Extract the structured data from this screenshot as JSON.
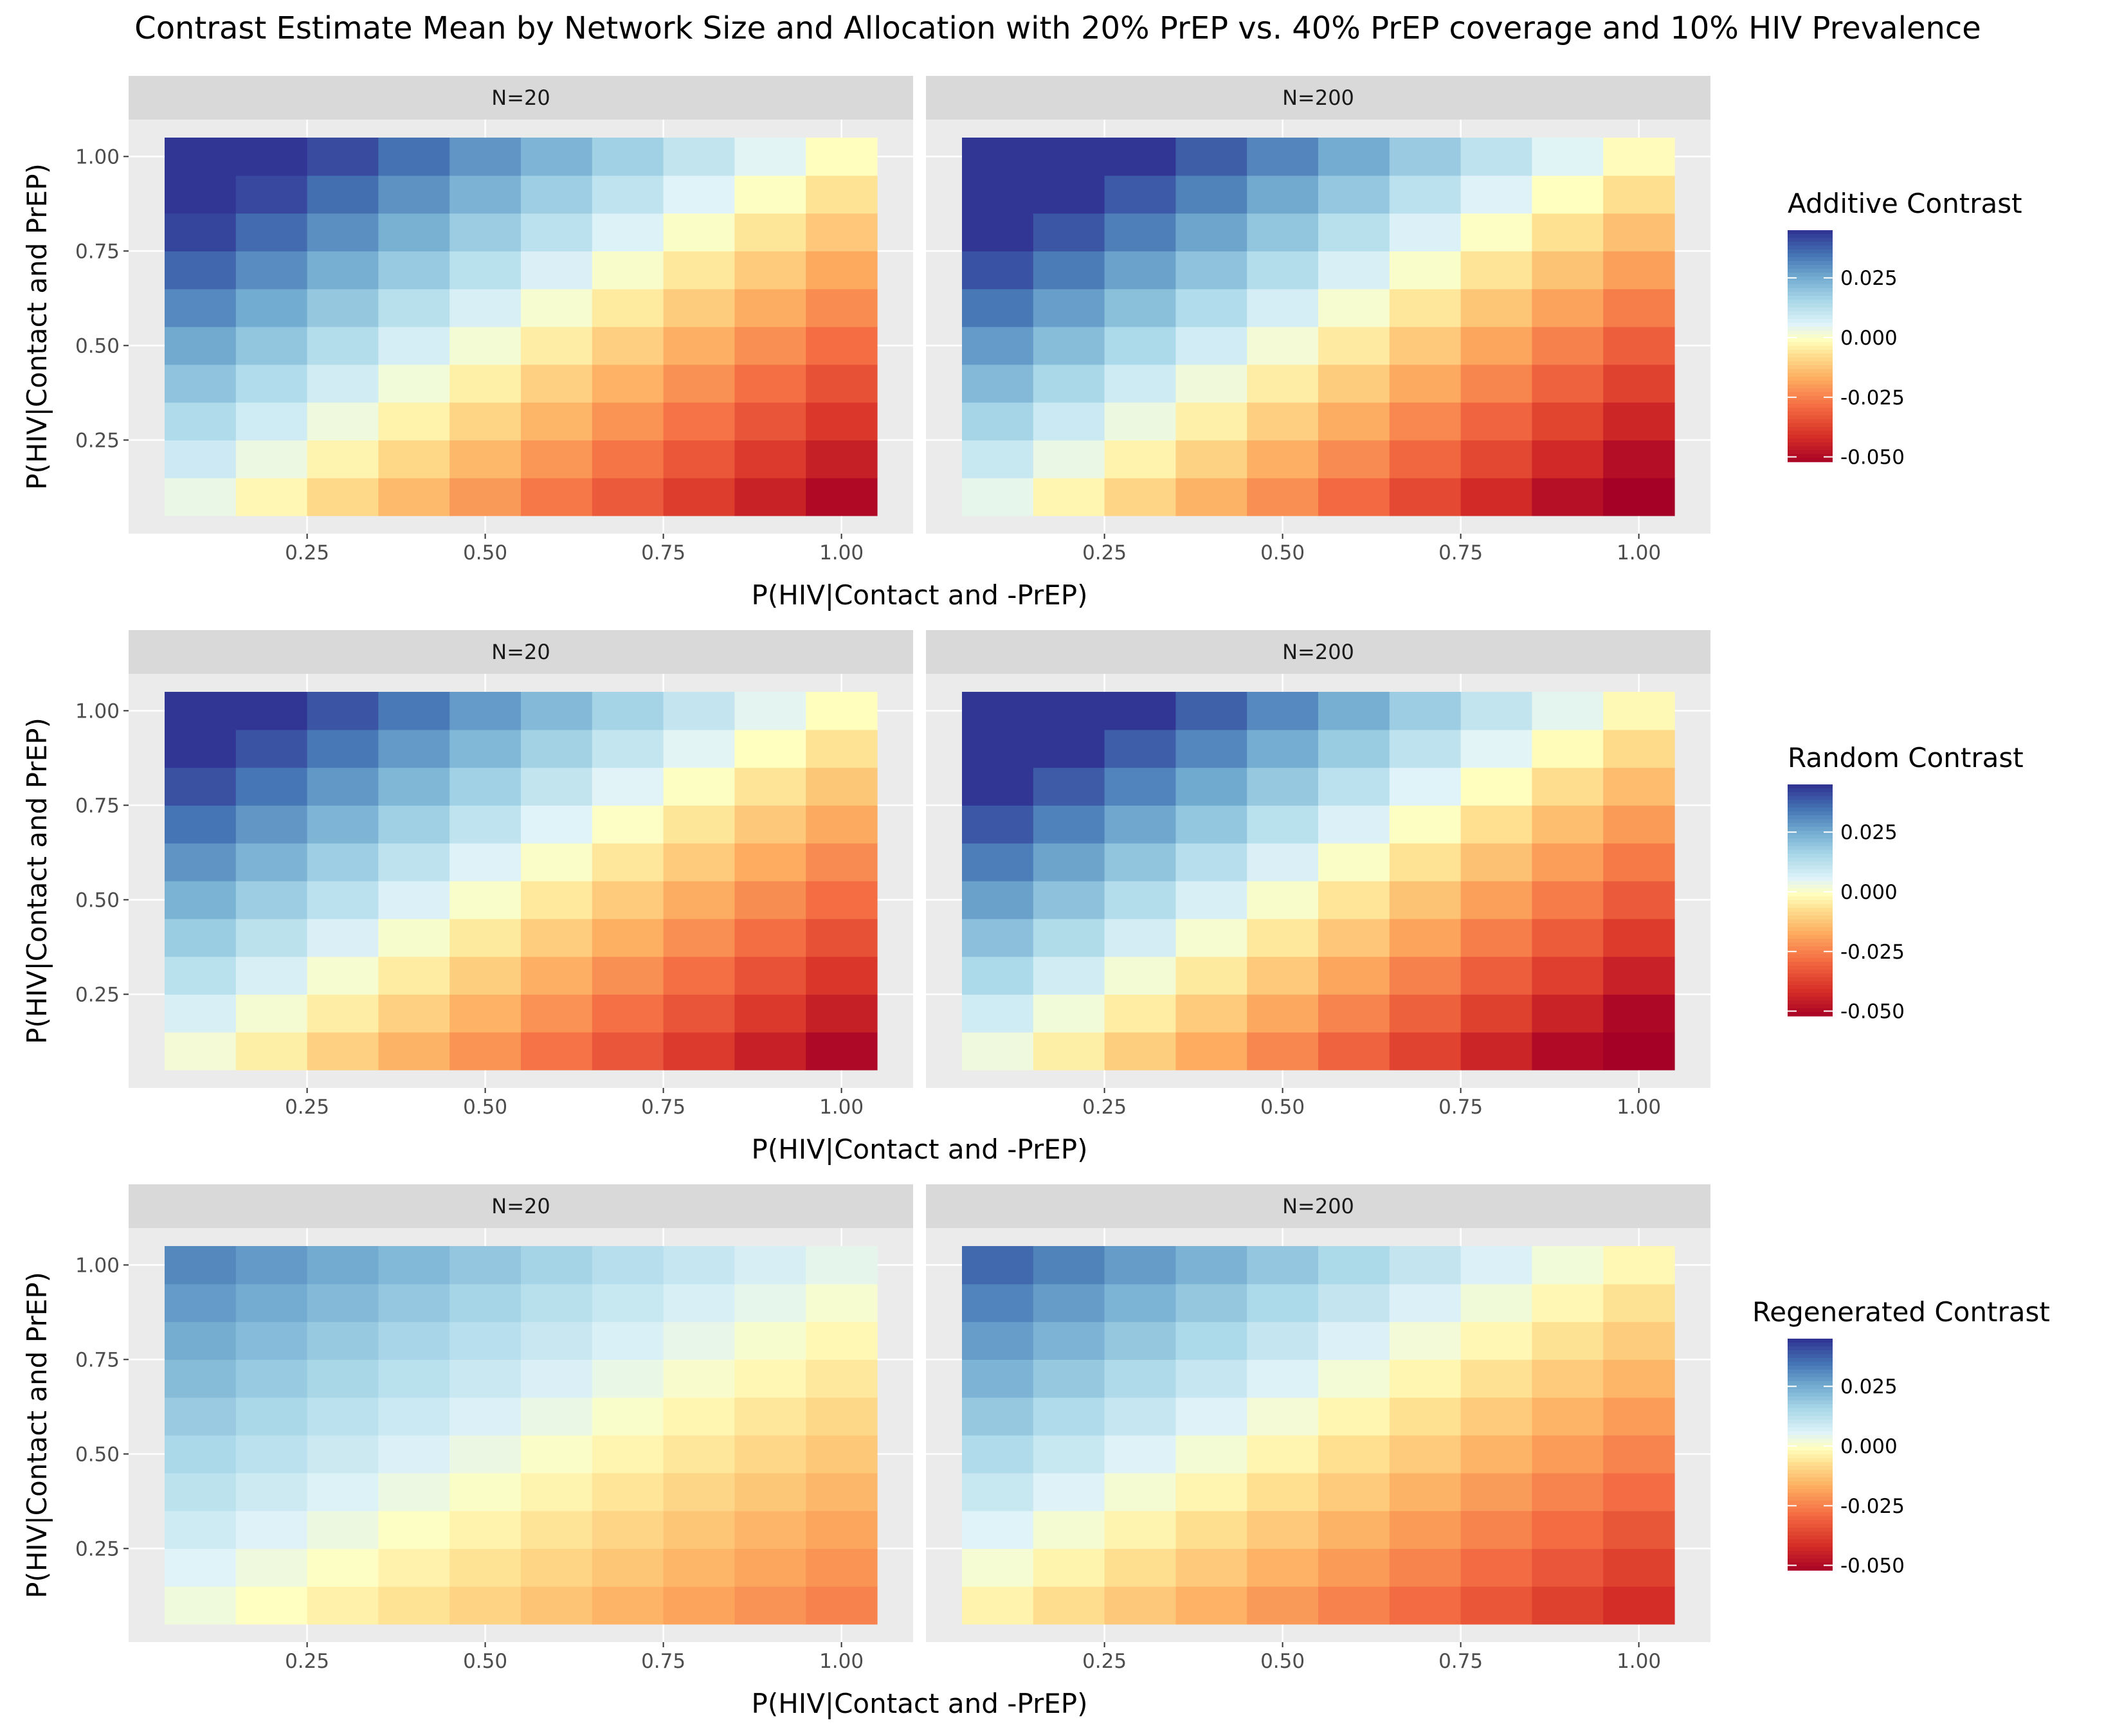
{
  "title": "Contrast Estimate Mean by Network Size and Allocation with 20% PrEP vs. 40% PrEP coverage and 10% HIV Prevalence",
  "x_label": "P(HIV|Contact and -PrEP)",
  "y_label": "P(HIV|Contact and PrEP)",
  "chart_data": [
    {
      "type": "heatmap",
      "row_label": "Additive Contrast",
      "x": [
        0.1,
        0.2,
        0.3,
        0.4,
        0.5,
        0.6,
        0.7,
        0.8,
        0.9,
        1.0
      ],
      "y": [
        0.1,
        0.2,
        0.3,
        0.4,
        0.5,
        0.6,
        0.7,
        0.8,
        0.9,
        1.0
      ],
      "x_ticks": [
        "0.25",
        "0.50",
        "0.75",
        "1.00"
      ],
      "y_ticks": [
        "0.25",
        "0.50",
        "0.75",
        "1.00"
      ],
      "legend": {
        "title": "Additive Contrast",
        "ticks": [
          "0.025",
          "0.000",
          "-0.025",
          "-0.050"
        ],
        "range": [
          -0.052,
          0.045
        ]
      },
      "panels": [
        {
          "label": "N=20",
          "center": 0.002,
          "fx": 0.06,
          "fy": 0.055
        },
        {
          "label": "N=200",
          "center": 0.002,
          "fx": 0.066,
          "fy": 0.06
        }
      ]
    },
    {
      "type": "heatmap",
      "row_label": "Random Contrast",
      "x": [
        0.1,
        0.2,
        0.3,
        0.4,
        0.5,
        0.6,
        0.7,
        0.8,
        0.9,
        1.0
      ],
      "y": [
        0.1,
        0.2,
        0.3,
        0.4,
        0.5,
        0.6,
        0.7,
        0.8,
        0.9,
        1.0
      ],
      "x_ticks": [
        "0.25",
        "0.50",
        "0.75",
        "1.00"
      ],
      "y_ticks": [
        "0.25",
        "0.50",
        "0.75",
        "1.00"
      ],
      "legend": {
        "title": "Random Contrast",
        "ticks": [
          "0.025",
          "0.000",
          "-0.025",
          "-0.050"
        ],
        "range": [
          -0.052,
          0.045
        ]
      },
      "panels": [
        {
          "label": "N=20",
          "center": 0.001,
          "fx": 0.058,
          "fy": 0.055
        },
        {
          "label": "N=200",
          "center": 0.001,
          "fx": 0.066,
          "fy": 0.061
        }
      ]
    },
    {
      "type": "heatmap",
      "row_label": "Regenerated Contrast",
      "x": [
        0.1,
        0.2,
        0.3,
        0.4,
        0.5,
        0.6,
        0.7,
        0.8,
        0.9,
        1.0
      ],
      "y": [
        0.1,
        0.2,
        0.3,
        0.4,
        0.5,
        0.6,
        0.7,
        0.8,
        0.9,
        1.0
      ],
      "x_ticks": [
        "0.25",
        "0.50",
        "0.75",
        "1.00"
      ],
      "y_ticks": [
        "0.25",
        "0.50",
        "0.75",
        "1.00"
      ],
      "legend": {
        "title": "Regenerated Contrast",
        "ticks": [
          "0.025",
          "0.000",
          "-0.025",
          "-0.050"
        ],
        "range": [
          -0.052,
          0.045
        ]
      },
      "panels": [
        {
          "label": "N=20",
          "center": 0.004,
          "fx": 0.03,
          "fy": 0.032
        },
        {
          "label": "N=200",
          "center": -0.002,
          "fx": 0.043,
          "fy": 0.044
        }
      ]
    }
  ]
}
